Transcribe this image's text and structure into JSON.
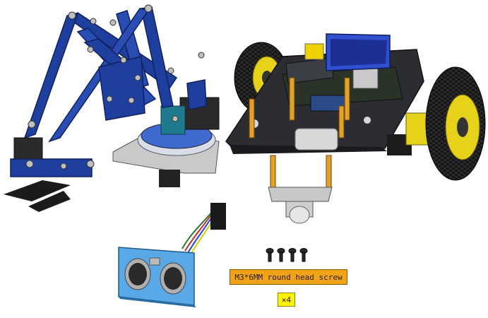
{
  "screw_label": "M3*6MM round head screw",
  "screw_quantity": "×4",
  "colors": {
    "arm_blue": "#1f3f9e",
    "arm_blue_dark": "#10225e",
    "chassis": "#2b2d33",
    "standoff": "#e3a12b",
    "tire": "#1a1a1a",
    "rim": "#e6d21a",
    "sensor_blue": "#5aa9e6",
    "label_orange": "#f0a318",
    "label_yellow": "#fff200"
  },
  "icons": [
    "robot-arm",
    "robot-car-chassis",
    "ultrasonic-sensor",
    "screw"
  ]
}
